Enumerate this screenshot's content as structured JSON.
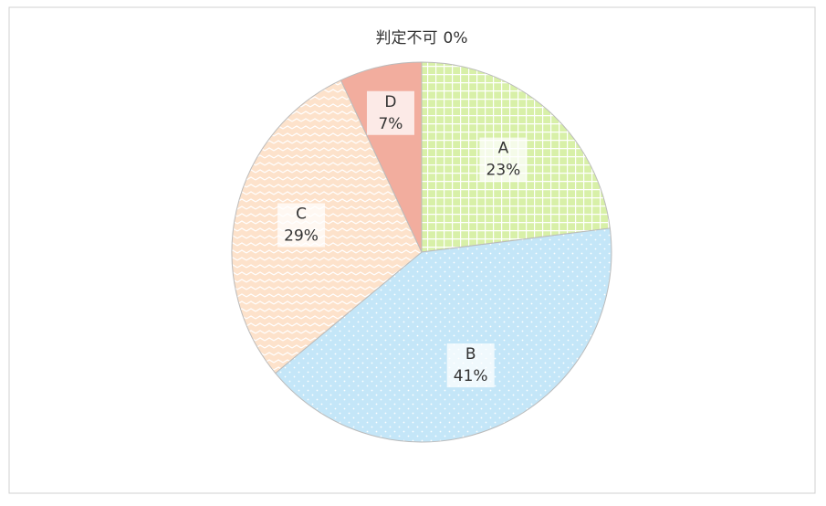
{
  "chart_data": {
    "type": "pie",
    "categories": [
      "A",
      "B",
      "C",
      "D",
      "判定不可"
    ],
    "values": [
      23,
      41,
      29,
      7,
      0
    ],
    "value_labels": [
      "23%",
      "41%",
      "29%",
      "7%",
      "0%"
    ],
    "colors": [
      "#d8f0a8",
      "#c4e6f8",
      "#fde2cb",
      "#f2ad9e",
      "#cccccc"
    ]
  }
}
